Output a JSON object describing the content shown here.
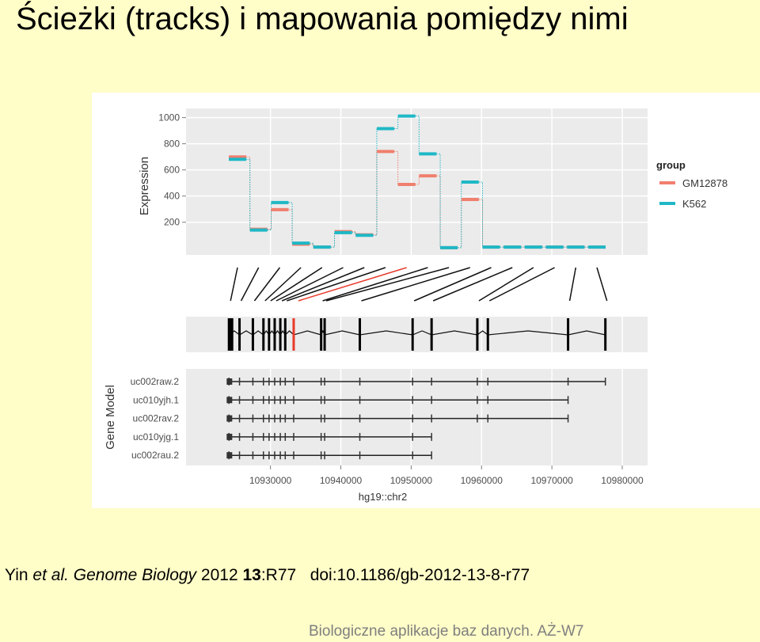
{
  "title": "Ścieżki (tracks) i mapowania pomiędzy nimi",
  "chart_data": [
    {
      "type": "step",
      "ylabel": "Expression",
      "legend_title": "group",
      "legend": "right",
      "categories": [
        null,
        null,
        null,
        null,
        null,
        null,
        null,
        null,
        null,
        null,
        null,
        null,
        null,
        null,
        null,
        null,
        null,
        null
      ],
      "series": [
        {
          "name": "GM12878",
          "color": "#f07f6e",
          "values": [
            699,
            146,
            296,
            32,
            10,
            128,
            104,
            741,
            489,
            555,
            5,
            374,
            10,
            10,
            10,
            10,
            10,
            10
          ]
        },
        {
          "name": "K562",
          "color": "#1fb8c6",
          "values": [
            681,
            140,
            350,
            40,
            10,
            120,
            100,
            916,
            1012,
            723,
            5,
            507,
            10,
            10,
            10,
            10,
            10,
            10
          ]
        }
      ],
      "ylim": [
        -50,
        1070
      ],
      "yticks": [
        200,
        400,
        600,
        800,
        1000
      ],
      "grid": true
    },
    {
      "type": "gene-model",
      "ylabel": "Gene Model",
      "xlabel": "hg19::chr2",
      "exons": [
        10924100,
        10925600,
        10927500,
        10929000,
        10929800,
        10930600,
        10931400,
        10932100,
        10933300,
        10937200,
        10937700,
        10942700,
        10950200,
        10952900,
        10959400,
        10960900,
        10972300,
        10977600
      ],
      "highlight": 8,
      "highlight_color": "#e8392b",
      "transcripts": [
        "uc002raw.2",
        "uc010yjh.1",
        "uc002rav.2",
        "uc010yjg.1",
        "uc002rau.2"
      ],
      "starts": [
        10924000,
        10924000,
        10924000,
        10924000,
        10924000
      ],
      "ends": [
        10977600,
        10972300,
        10972300,
        10952900,
        10952900
      ],
      "xlim": [
        10918000,
        10983600
      ],
      "xticks": [
        10930000,
        10940000,
        10950000,
        10960000,
        10970000,
        10980000
      ],
      "grid": true
    }
  ],
  "citation": {
    "author": "Yin",
    "etal": "et al.",
    "journal": "Genome Biology",
    "year": "2012",
    "volume": "13",
    "article": ":R77",
    "doi": "doi:10.1186/gb-2012-13-8-r77"
  },
  "footer": "Biologiczne aplikacje baz danych. AŻ-W7"
}
